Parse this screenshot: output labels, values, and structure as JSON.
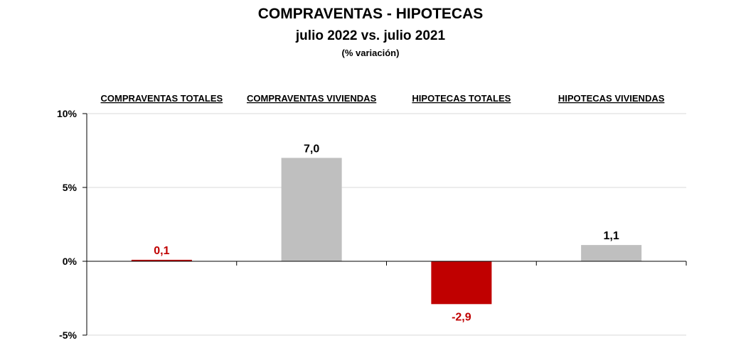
{
  "chart_data": {
    "type": "bar",
    "title": "COMPRAVENTAS - HIPOTECAS",
    "subtitle": "julio 2022  vs. julio 2021",
    "note": "(% variación)",
    "categories": [
      "COMPRAVENTAS TOTALES",
      "COMPRAVENTAS VIVIENDAS",
      "HIPOTECAS TOTALES",
      "HIPOTECAS VIVIENDAS"
    ],
    "values": [
      0.1,
      7.0,
      -2.9,
      1.1
    ],
    "value_labels": [
      "0,1",
      "7,0",
      "-2,9",
      "1,1"
    ],
    "bar_colors": [
      "#c00000",
      "#bfbfbf",
      "#c00000",
      "#bfbfbf"
    ],
    "label_colors": [
      "#c00000",
      "#000000",
      "#c00000",
      "#000000"
    ],
    "ylim": [
      -5,
      10
    ],
    "yticks": [
      10,
      5,
      0,
      -5
    ],
    "ytick_labels": [
      "10%",
      "5%",
      "0%",
      "-5%"
    ],
    "grid": true,
    "category_label_position": "top"
  }
}
